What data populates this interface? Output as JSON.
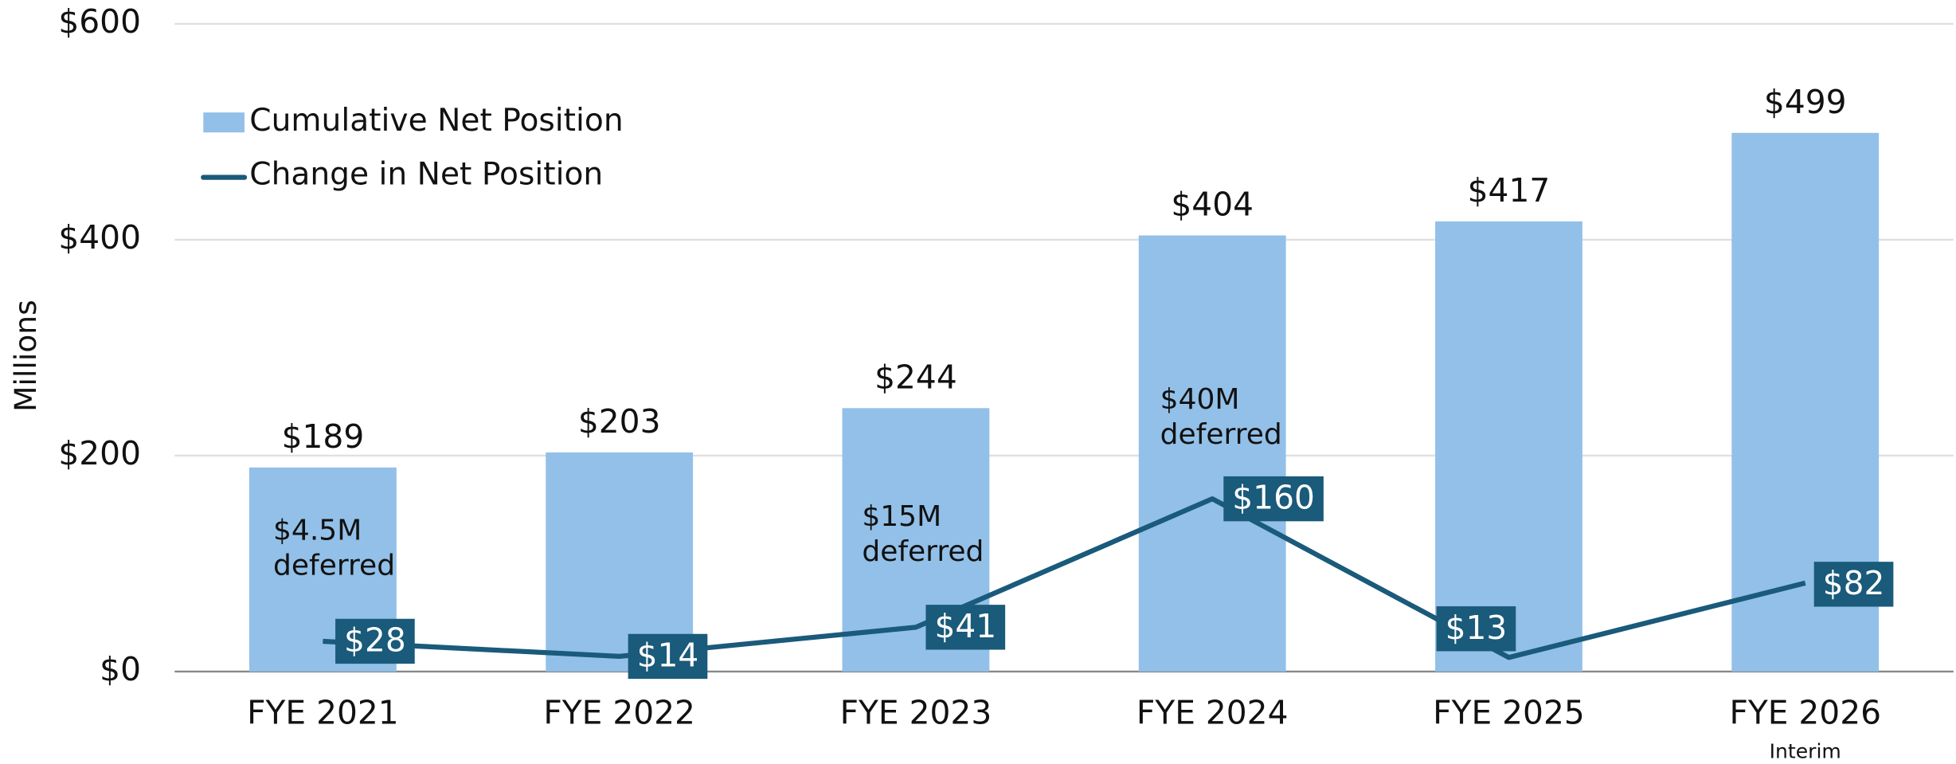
{
  "chart_data": {
    "type": "bar_line",
    "y_axis_label": "Millions",
    "categories": [
      "FYE 2021",
      "FYE 2022",
      "FYE 2023",
      "FYE 2024",
      "FYE 2025",
      "FYE 2026"
    ],
    "category_notes": [
      null,
      null,
      null,
      null,
      null,
      "Interim"
    ],
    "series": [
      {
        "name": "Cumulative Net Position",
        "type": "bar",
        "color": "#92c0e8",
        "values": [
          189,
          203,
          244,
          404,
          417,
          499
        ],
        "value_labels": [
          "$189",
          "$203",
          "$244",
          "$404",
          "$417",
          "$499"
        ]
      },
      {
        "name": "Change in Net Position",
        "type": "line",
        "color": "#1a5a7a",
        "values": [
          28,
          14,
          41,
          160,
          13,
          82
        ],
        "value_labels": [
          "$28",
          "$14",
          "$41",
          "$160",
          "$13",
          "$82"
        ]
      }
    ],
    "annotations": [
      {
        "lines": [
          "$4.5M",
          "deferred"
        ]
      },
      {
        "lines": [
          "$15M",
          "deferred"
        ]
      },
      {
        "lines": [
          "$40M",
          "deferred"
        ]
      }
    ],
    "ylim": [
      0,
      600
    ],
    "yticks": [
      {
        "value": 0,
        "label": "$0"
      },
      {
        "value": 200,
        "label": "$200"
      },
      {
        "value": 400,
        "label": "$400"
      },
      {
        "value": 600,
        "label": "$600"
      }
    ],
    "grid": true,
    "legend": "top-left"
  }
}
